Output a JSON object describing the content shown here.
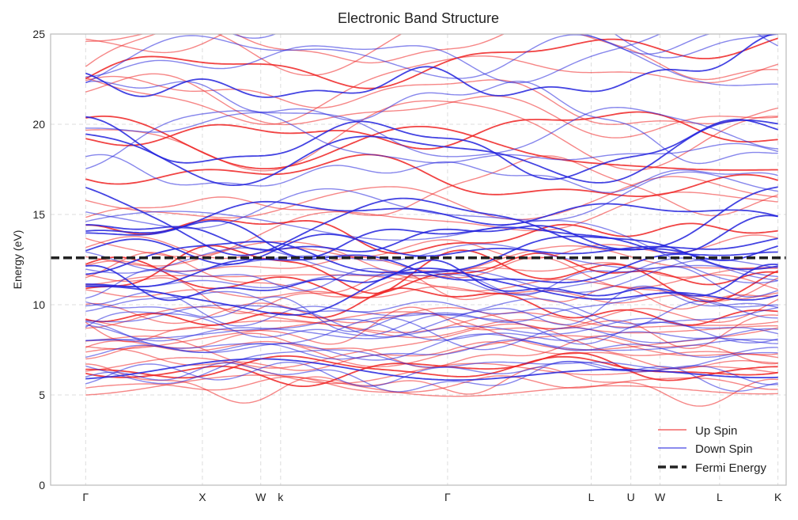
{
  "chart_data": {
    "type": "line",
    "title": "Electronic Band Structure",
    "xlabel": "",
    "ylabel": "Energy (eV)",
    "ylim": [
      0,
      25
    ],
    "yticks": [
      0,
      5,
      10,
      15,
      20,
      25
    ],
    "xlim": [
      -0.3,
      6.0
    ],
    "high_symmetry_points": [
      {
        "label": "Γ",
        "x": 0.0
      },
      {
        "label": "X",
        "x": 1.0
      },
      {
        "label": "W",
        "x": 1.5
      },
      {
        "label": "k",
        "x": 1.67
      },
      {
        "label": "Γ",
        "x": 3.1
      },
      {
        "label": "L",
        "x": 4.33
      },
      {
        "label": "U",
        "x": 4.67
      },
      {
        "label": "W",
        "x": 4.92
      },
      {
        "label": "L",
        "x": 5.43
      },
      {
        "label": "K",
        "x": 5.93
      }
    ],
    "fermi_energy": 12.6,
    "grid": true,
    "legend_position": "bottom-right",
    "series": [
      {
        "name": "Up Spin",
        "color": "#ee2222",
        "band_count": 40,
        "min_energy": 5.0
      },
      {
        "name": "Down Spin",
        "color": "#2222dd",
        "band_count": 40,
        "min_energy": 5.9
      },
      {
        "name": "Fermi Energy",
        "color": "#222222",
        "style": "dashed"
      }
    ]
  }
}
